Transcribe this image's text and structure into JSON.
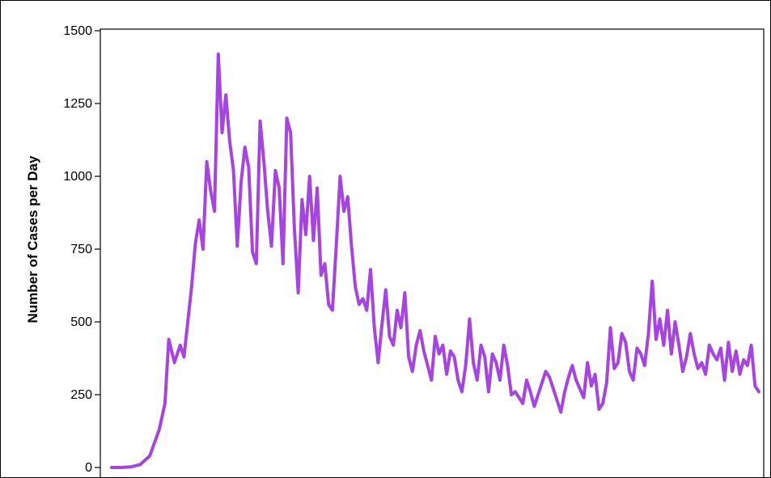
{
  "chart_data": {
    "type": "line",
    "title": "",
    "xlabel": "",
    "ylabel": "Number of Cases per Day",
    "ylim": [
      0,
      1500
    ],
    "yticks": [
      0,
      250,
      500,
      750,
      1000,
      1250,
      1500
    ],
    "ytick_labels": [
      "0",
      "250",
      "500",
      "750",
      "1000",
      "1250",
      "1500"
    ],
    "xlim": [
      0,
      340
    ],
    "grid": false,
    "series": [
      {
        "color": "#a544e3",
        "points": [
          [
            0,
            0
          ],
          [
            5,
            0
          ],
          [
            10,
            2
          ],
          [
            15,
            10
          ],
          [
            20,
            40
          ],
          [
            25,
            130
          ],
          [
            28,
            220
          ],
          [
            30,
            440
          ],
          [
            33,
            360
          ],
          [
            36,
            420
          ],
          [
            38,
            380
          ],
          [
            40,
            500
          ],
          [
            42,
            620
          ],
          [
            44,
            770
          ],
          [
            46,
            850
          ],
          [
            48,
            750
          ],
          [
            50,
            1050
          ],
          [
            52,
            950
          ],
          [
            54,
            880
          ],
          [
            56,
            1420
          ],
          [
            58,
            1150
          ],
          [
            60,
            1280
          ],
          [
            62,
            1120
          ],
          [
            64,
            1020
          ],
          [
            66,
            760
          ],
          [
            68,
            980
          ],
          [
            70,
            1100
          ],
          [
            72,
            1030
          ],
          [
            74,
            740
          ],
          [
            76,
            700
          ],
          [
            78,
            1190
          ],
          [
            80,
            1050
          ],
          [
            82,
            880
          ],
          [
            84,
            760
          ],
          [
            86,
            1020
          ],
          [
            88,
            960
          ],
          [
            90,
            700
          ],
          [
            92,
            1200
          ],
          [
            94,
            1150
          ],
          [
            96,
            820
          ],
          [
            98,
            600
          ],
          [
            100,
            920
          ],
          [
            102,
            800
          ],
          [
            104,
            1000
          ],
          [
            106,
            780
          ],
          [
            108,
            960
          ],
          [
            110,
            660
          ],
          [
            112,
            700
          ],
          [
            114,
            560
          ],
          [
            116,
            540
          ],
          [
            118,
            760
          ],
          [
            120,
            1000
          ],
          [
            122,
            880
          ],
          [
            124,
            930
          ],
          [
            126,
            760
          ],
          [
            128,
            620
          ],
          [
            130,
            560
          ],
          [
            132,
            580
          ],
          [
            134,
            540
          ],
          [
            136,
            680
          ],
          [
            138,
            480
          ],
          [
            140,
            360
          ],
          [
            142,
            490
          ],
          [
            144,
            610
          ],
          [
            146,
            450
          ],
          [
            148,
            420
          ],
          [
            150,
            540
          ],
          [
            152,
            480
          ],
          [
            154,
            600
          ],
          [
            156,
            380
          ],
          [
            158,
            330
          ],
          [
            160,
            420
          ],
          [
            162,
            470
          ],
          [
            164,
            400
          ],
          [
            166,
            350
          ],
          [
            168,
            300
          ],
          [
            170,
            450
          ],
          [
            172,
            390
          ],
          [
            174,
            420
          ],
          [
            176,
            320
          ],
          [
            178,
            400
          ],
          [
            180,
            380
          ],
          [
            182,
            300
          ],
          [
            184,
            260
          ],
          [
            186,
            350
          ],
          [
            188,
            510
          ],
          [
            190,
            360
          ],
          [
            192,
            300
          ],
          [
            194,
            420
          ],
          [
            196,
            380
          ],
          [
            198,
            260
          ],
          [
            200,
            390
          ],
          [
            202,
            360
          ],
          [
            204,
            300
          ],
          [
            206,
            420
          ],
          [
            208,
            350
          ],
          [
            210,
            250
          ],
          [
            212,
            260
          ],
          [
            214,
            240
          ],
          [
            216,
            220
          ],
          [
            218,
            300
          ],
          [
            220,
            260
          ],
          [
            222,
            210
          ],
          [
            224,
            250
          ],
          [
            226,
            290
          ],
          [
            228,
            330
          ],
          [
            230,
            310
          ],
          [
            232,
            270
          ],
          [
            234,
            230
          ],
          [
            236,
            190
          ],
          [
            238,
            260
          ],
          [
            240,
            310
          ],
          [
            242,
            350
          ],
          [
            244,
            300
          ],
          [
            246,
            270
          ],
          [
            248,
            240
          ],
          [
            250,
            360
          ],
          [
            252,
            280
          ],
          [
            254,
            320
          ],
          [
            256,
            200
          ],
          [
            258,
            220
          ],
          [
            260,
            290
          ],
          [
            262,
            480
          ],
          [
            264,
            340
          ],
          [
            266,
            360
          ],
          [
            268,
            460
          ],
          [
            270,
            430
          ],
          [
            272,
            330
          ],
          [
            274,
            300
          ],
          [
            276,
            410
          ],
          [
            278,
            390
          ],
          [
            280,
            350
          ],
          [
            282,
            460
          ],
          [
            284,
            640
          ],
          [
            286,
            440
          ],
          [
            288,
            510
          ],
          [
            290,
            420
          ],
          [
            292,
            540
          ],
          [
            294,
            390
          ],
          [
            296,
            500
          ],
          [
            298,
            420
          ],
          [
            300,
            330
          ],
          [
            302,
            380
          ],
          [
            304,
            460
          ],
          [
            306,
            390
          ],
          [
            308,
            340
          ],
          [
            310,
            360
          ],
          [
            312,
            320
          ],
          [
            314,
            420
          ],
          [
            316,
            390
          ],
          [
            318,
            370
          ],
          [
            320,
            410
          ],
          [
            322,
            300
          ],
          [
            324,
            430
          ],
          [
            326,
            330
          ],
          [
            328,
            400
          ],
          [
            330,
            320
          ],
          [
            332,
            370
          ],
          [
            334,
            350
          ],
          [
            336,
            420
          ],
          [
            338,
            280
          ],
          [
            340,
            260
          ]
        ]
      }
    ]
  }
}
